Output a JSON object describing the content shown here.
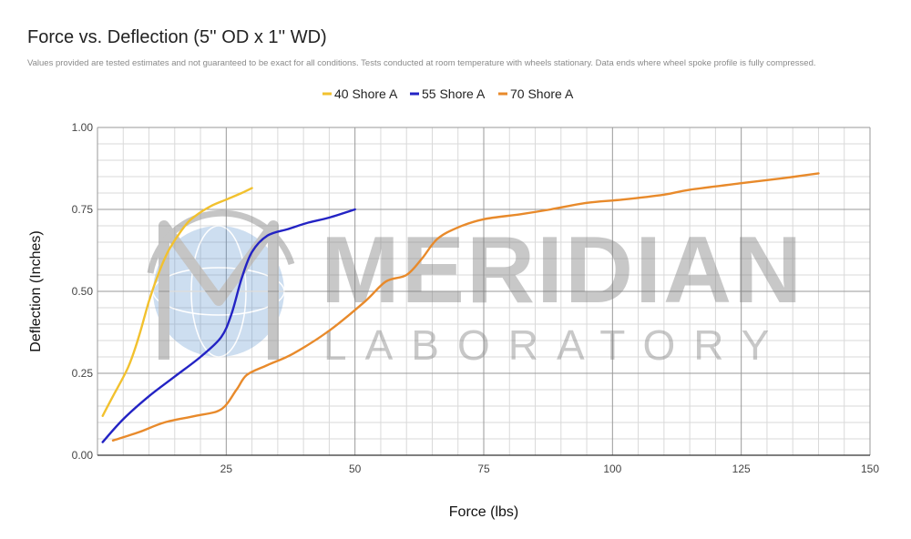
{
  "chart_data": {
    "type": "line",
    "title": "Force vs. Deflection (5'' OD x 1'' WD)",
    "subtitle": "Values provided are tested estimates and not guaranteed to be exact for all conditions. Tests conducted at room temperature with wheels stationary. Data ends where wheel spoke profile is fully compressed.",
    "xlabel": "Force (lbs)",
    "ylabel": "Deflection (Inches)",
    "xlim": [
      0,
      150
    ],
    "ylim": [
      0,
      1
    ],
    "xticks": [
      25,
      50,
      75,
      100,
      125,
      150
    ],
    "yticks": [
      "0.00",
      "0.25",
      "0.50",
      "0.75",
      "1.00"
    ],
    "grid": true,
    "legend_position": "top",
    "series": [
      {
        "name": "40 Shore A",
        "color": "#f2c12e",
        "points": [
          [
            1,
            0.12
          ],
          [
            3,
            0.18
          ],
          [
            6,
            0.27
          ],
          [
            8,
            0.36
          ],
          [
            10,
            0.47
          ],
          [
            12,
            0.56
          ],
          [
            14,
            0.63
          ],
          [
            17,
            0.7
          ],
          [
            19,
            0.73
          ],
          [
            22,
            0.76
          ],
          [
            25,
            0.78
          ],
          [
            28,
            0.8
          ],
          [
            30,
            0.815
          ]
        ]
      },
      {
        "name": "55 Shore A",
        "color": "#2323c4",
        "points": [
          [
            1,
            0.04
          ],
          [
            5,
            0.11
          ],
          [
            10,
            0.18
          ],
          [
            15,
            0.24
          ],
          [
            20,
            0.3
          ],
          [
            24,
            0.36
          ],
          [
            26,
            0.43
          ],
          [
            28,
            0.54
          ],
          [
            30,
            0.62
          ],
          [
            33,
            0.67
          ],
          [
            37,
            0.69
          ],
          [
            41,
            0.71
          ],
          [
            45,
            0.725
          ],
          [
            50,
            0.75
          ]
        ]
      },
      {
        "name": "70 Shore A",
        "color": "#e88a2b",
        "points": [
          [
            3,
            0.045
          ],
          [
            8,
            0.07
          ],
          [
            13,
            0.1
          ],
          [
            19,
            0.12
          ],
          [
            24,
            0.14
          ],
          [
            27,
            0.2
          ],
          [
            29,
            0.245
          ],
          [
            33,
            0.275
          ],
          [
            38,
            0.31
          ],
          [
            45,
            0.38
          ],
          [
            52,
            0.47
          ],
          [
            56,
            0.53
          ],
          [
            60,
            0.55
          ],
          [
            63,
            0.6
          ],
          [
            66,
            0.66
          ],
          [
            70,
            0.695
          ],
          [
            75,
            0.72
          ],
          [
            82,
            0.735
          ],
          [
            88,
            0.75
          ],
          [
            95,
            0.77
          ],
          [
            102,
            0.78
          ],
          [
            110,
            0.795
          ],
          [
            115,
            0.81
          ],
          [
            125,
            0.83
          ],
          [
            133,
            0.845
          ],
          [
            140,
            0.86
          ]
        ]
      }
    ]
  },
  "watermark": {
    "name": "MERIDIAN",
    "tagline": "LABORATORY"
  }
}
